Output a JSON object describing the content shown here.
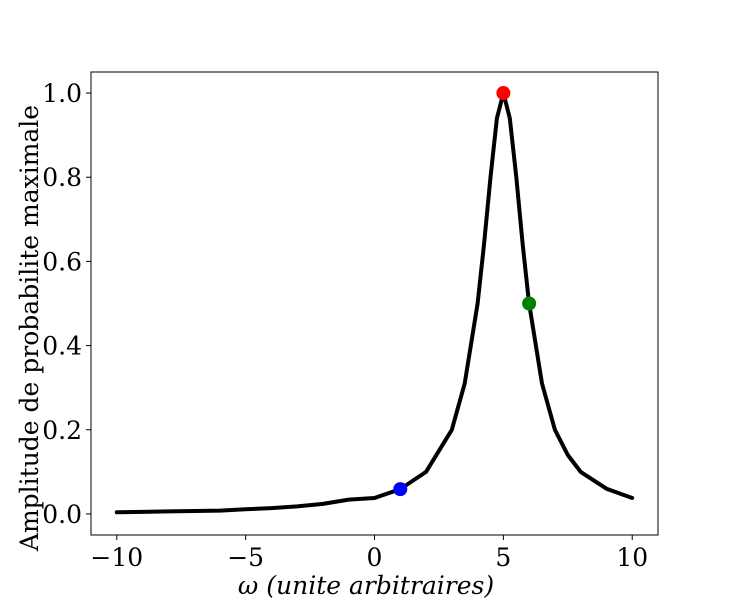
{
  "chart_data": {
    "type": "line",
    "title": "",
    "xlabel_symbol": "ω",
    "xlabel_text": "(unite arbitraires)",
    "ylabel": "Amplitude de probabilite maximale",
    "xlim": [
      -11,
      11
    ],
    "ylim": [
      -0.05,
      1.05
    ],
    "xticks": [
      -10,
      -5,
      0,
      5,
      10
    ],
    "xtick_labels": [
      "−10",
      "−5",
      "0",
      "5",
      "10"
    ],
    "yticks": [
      0.0,
      0.2,
      0.4,
      0.6,
      0.8,
      1.0
    ],
    "ytick_labels": [
      "0.0",
      "0.2",
      "0.4",
      "0.6",
      "0.8",
      "1.0"
    ],
    "grid": false,
    "series": [
      {
        "color": "#000000",
        "x": [
          -10,
          -9,
          -8,
          -7,
          -6,
          -5,
          -4,
          -3,
          -2,
          -1,
          0,
          1,
          2,
          3,
          3.5,
          4,
          4.25,
          4.5,
          4.75,
          5,
          5.25,
          5.5,
          5.75,
          6,
          6.5,
          7,
          7.5,
          8,
          9,
          10
        ],
        "y": [
          0.004,
          0.005,
          0.006,
          0.007,
          0.008,
          0.011,
          0.014,
          0.018,
          0.024,
          0.034,
          0.038,
          0.059,
          0.1,
          0.2,
          0.31,
          0.5,
          0.64,
          0.8,
          0.94,
          1.0,
          0.94,
          0.8,
          0.64,
          0.5,
          0.31,
          0.2,
          0.14,
          0.1,
          0.06,
          0.038
        ]
      }
    ],
    "markers": [
      {
        "x": 1,
        "y": 0.059,
        "color": "#0000ff"
      },
      {
        "x": 5,
        "y": 1.0,
        "color": "#ff0000"
      },
      {
        "x": 6,
        "y": 0.5,
        "color": "#008000"
      }
    ]
  }
}
